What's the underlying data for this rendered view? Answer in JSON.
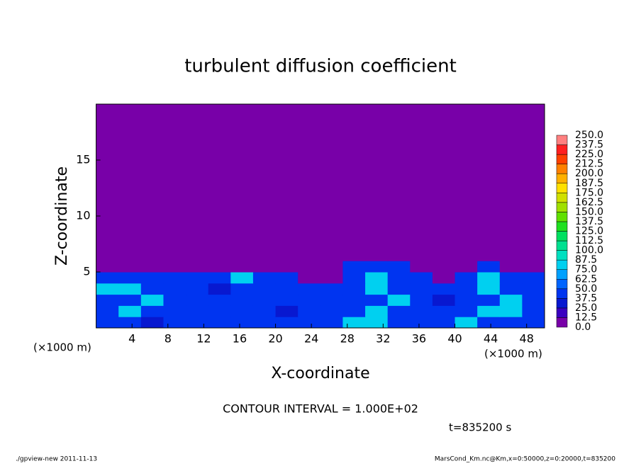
{
  "chart_data": {
    "type": "heatmap",
    "title": "turbulent diffusion coefficient",
    "xlabel": "X-coordinate",
    "ylabel": "Z-coordinate",
    "x_unit": "(×1000 m)",
    "y_unit": "(×1000 m)",
    "note": "CONTOUR INTERVAL = 1.000E+02",
    "time": "t=835200 s",
    "footer_left": "./gpview-new   2011-11-13",
    "footer_right": "MarsCond_Km.nc@Km,x=0:50000,z=0:20000,t=835200",
    "xlim": [
      0,
      50
    ],
    "ylim": [
      0,
      20
    ],
    "xticks": [
      4,
      8,
      12,
      16,
      20,
      24,
      28,
      32,
      36,
      40,
      44,
      48
    ],
    "yticks": [
      5,
      10,
      15
    ],
    "x_edges": [
      0,
      2.5,
      5,
      7.5,
      10,
      12.5,
      15,
      17.5,
      20,
      22.5,
      25,
      27.5,
      30,
      32.5,
      35,
      37.5,
      40,
      42.5,
      45,
      47.5,
      50
    ],
    "z_edges": [
      0,
      1,
      2,
      3,
      4,
      5,
      6,
      7,
      20
    ],
    "values": [
      [
        45,
        45,
        30,
        45,
        45,
        45,
        45,
        45,
        45,
        45,
        45,
        80,
        80,
        45,
        45,
        45,
        80,
        45,
        45,
        45
      ],
      [
        45,
        80,
        45,
        45,
        45,
        45,
        45,
        45,
        30,
        45,
        45,
        45,
        80,
        45,
        45,
        45,
        45,
        80,
        80,
        45
      ],
      [
        45,
        45,
        80,
        45,
        45,
        45,
        45,
        45,
        45,
        45,
        45,
        45,
        45,
        80,
        45,
        30,
        45,
        45,
        80,
        45
      ],
      [
        80,
        80,
        45,
        45,
        45,
        30,
        45,
        45,
        45,
        45,
        45,
        45,
        80,
        45,
        45,
        45,
        45,
        80,
        45,
        45
      ],
      [
        45,
        45,
        45,
        45,
        45,
        45,
        80,
        45,
        45,
        5,
        5,
        45,
        80,
        45,
        45,
        5,
        45,
        80,
        45,
        45
      ],
      [
        5,
        5,
        5,
        5,
        5,
        5,
        5,
        5,
        5,
        5,
        5,
        45,
        45,
        45,
        5,
        5,
        5,
        45,
        5,
        5
      ],
      [
        5,
        5,
        5,
        5,
        5,
        5,
        5,
        5,
        5,
        5,
        5,
        5,
        5,
        5,
        5,
        5,
        5,
        5,
        5,
        5
      ],
      [
        5,
        5,
        5,
        5,
        5,
        5,
        5,
        5,
        5,
        5,
        5,
        5,
        5,
        5,
        5,
        5,
        5,
        5,
        5,
        5
      ]
    ],
    "levels": [
      {
        "value": 0,
        "label": "0.0"
      },
      {
        "value": 12.5,
        "label": "12.5"
      },
      {
        "value": 25,
        "label": "25.0"
      },
      {
        "value": 37.5,
        "label": "37.5"
      },
      {
        "value": 50,
        "label": "50.0"
      },
      {
        "value": 62.5,
        "label": "62.5"
      },
      {
        "value": 75,
        "label": "75.0"
      },
      {
        "value": 87.5,
        "label": "87.5"
      },
      {
        "value": 100,
        "label": "100.0"
      },
      {
        "value": 112.5,
        "label": "112.5"
      },
      {
        "value": 125,
        "label": "125.0"
      },
      {
        "value": 137.5,
        "label": "137.5"
      },
      {
        "value": 150,
        "label": "150.0"
      },
      {
        "value": 162.5,
        "label": "162.5"
      },
      {
        "value": 175,
        "label": "175.0"
      },
      {
        "value": 187.5,
        "label": "187.5"
      },
      {
        "value": 200,
        "label": "200.0"
      },
      {
        "value": 212.5,
        "label": "212.5"
      },
      {
        "value": 225,
        "label": "225.0"
      },
      {
        "value": 237.5,
        "label": "237.5"
      },
      {
        "value": 250,
        "label": "250.0"
      }
    ],
    "colors": [
      "#7800a8",
      "#3a00c0",
      "#0818d0",
      "#0034f0",
      "#0064ff",
      "#00a0ff",
      "#00d0f0",
      "#00e0c0",
      "#00e090",
      "#00e060",
      "#20e020",
      "#60e000",
      "#a0e000",
      "#d0e000",
      "#ffe000",
      "#ffb000",
      "#ff8000",
      "#ff4000",
      "#ff2020",
      "#ff8080"
    ]
  }
}
